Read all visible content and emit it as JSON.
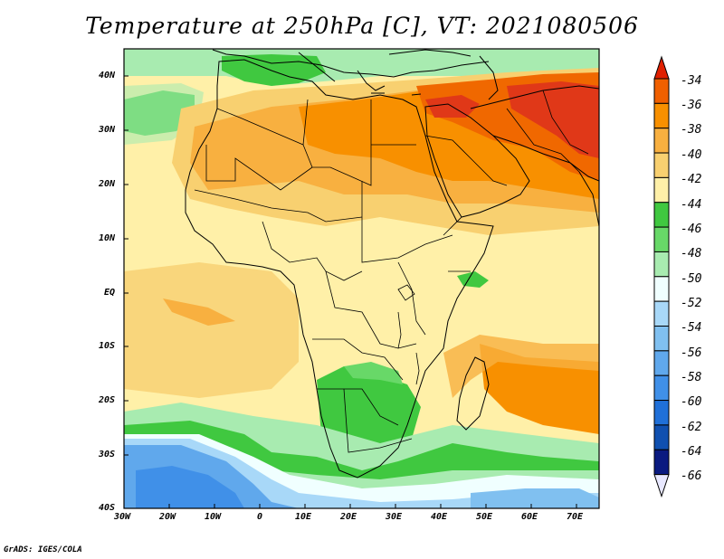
{
  "title": "Temperature at 250hPa [C], VT: 2021080506",
  "footer": "GrADS: IGES/COLA",
  "lat_labels": [
    "40N",
    "30N",
    "20N",
    "10N",
    "EQ",
    "10S",
    "20S",
    "30S",
    "40S"
  ],
  "lon_labels": [
    "30W",
    "20W",
    "10W",
    "0",
    "10E",
    "20E",
    "30E",
    "40E",
    "50E",
    "60E",
    "70E"
  ],
  "colorbar": {
    "labels": [
      "-34",
      "-36",
      "-38",
      "-40",
      "-42",
      "-44",
      "-46",
      "-48",
      "-50",
      "-52",
      "-54",
      "-56",
      "-58",
      "-60",
      "-62",
      "-64",
      "-66"
    ],
    "colors": [
      "#e02000",
      "#f06000",
      "#f89000",
      "#f8b040",
      "#f8d070",
      "#fff0a8",
      "#40c840",
      "#68d868",
      "#a8ebb0",
      "#f0ffff",
      "#a8d8f8",
      "#80c0f0",
      "#60a8ec",
      "#4090e8",
      "#2070d8",
      "#1050b0",
      "#0a1a80"
    ]
  },
  "map": {
    "extent": {
      "lon": [
        -30,
        75
      ],
      "lat": [
        -40,
        45
      ]
    },
    "colors": {
      "very_warm": "#e03818",
      "warm": "#f06800",
      "orange": "#f89000",
      "light_orange": "#f8b040",
      "yellow": "#f8d070",
      "pale_yellow": "#fff0a8",
      "green": "#40c840",
      "light_green": "#68d868",
      "pale_green": "#a8ebb0",
      "cyan": "#f0ffff",
      "light_blue": "#a8d8f8",
      "blue": "#60a8ec",
      "dark_blue": "#4090e8",
      "coast": "#000000"
    }
  }
}
